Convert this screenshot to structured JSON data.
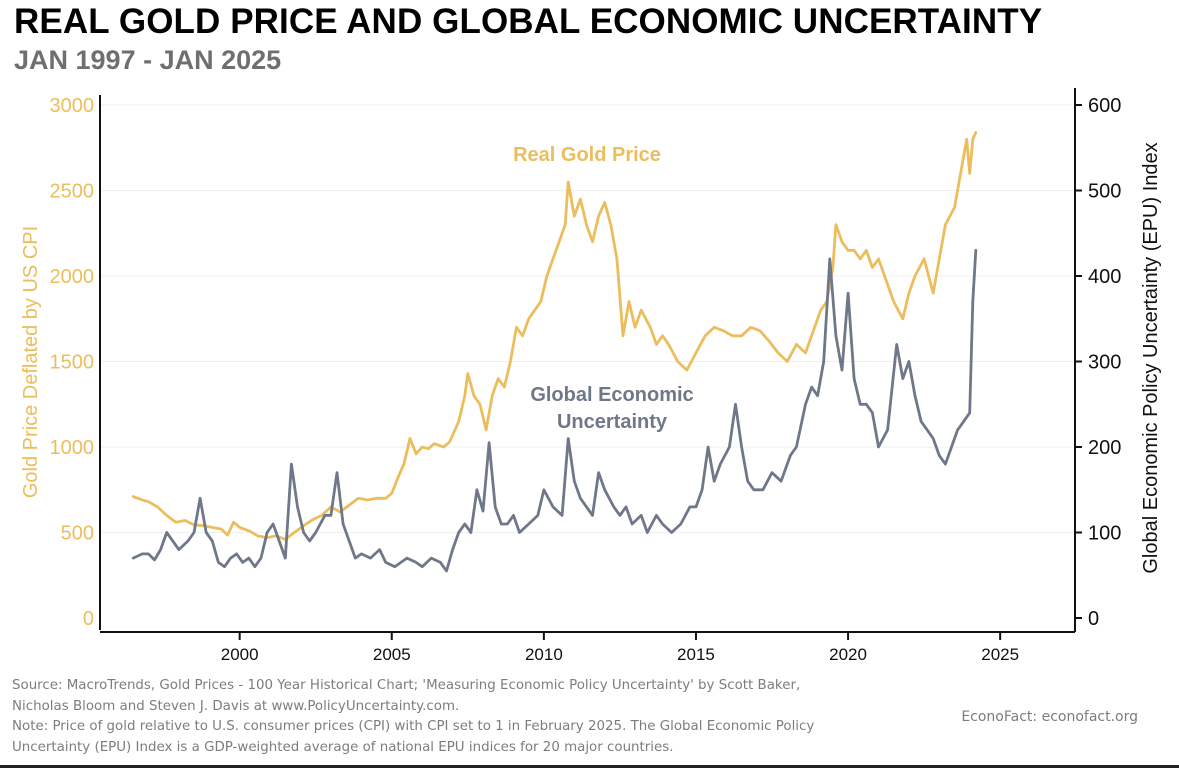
{
  "header": {
    "title": "REAL GOLD PRICE AND GLOBAL ECONOMIC UNCERTAINTY",
    "subtitle": "JAN 1997 - JAN 2025"
  },
  "colors": {
    "gold": "#ecbd5c",
    "epu": "#6e7889",
    "axis": "#111111",
    "grid": "#efefef",
    "note": "#7d7d7d"
  },
  "chart_data": {
    "type": "line",
    "xlim": [
      1996,
      2027
    ],
    "x_ticks": [
      2000,
      2005,
      2010,
      2015,
      2020,
      2025
    ],
    "left_axis": {
      "label": "Gold Price Deflated by US CPI",
      "lim": [
        0,
        3000
      ],
      "ticks": [
        0,
        500,
        1000,
        1500,
        2000,
        2500,
        3000
      ]
    },
    "right_axis": {
      "label": "Global Economic Policy Uncertainty (EPU) Index",
      "lim": [
        0,
        600
      ],
      "ticks": [
        0,
        100,
        200,
        300,
        400,
        500,
        600
      ]
    },
    "grid": "horizontal",
    "series": [
      {
        "name": "Real Gold Price",
        "axis": "left",
        "points": [
          [
            1996.5,
            710
          ],
          [
            1996.8,
            690
          ],
          [
            1997.0,
            680
          ],
          [
            1997.3,
            650
          ],
          [
            1997.6,
            600
          ],
          [
            1997.9,
            560
          ],
          [
            1998.2,
            570
          ],
          [
            1998.5,
            545
          ],
          [
            1998.8,
            540
          ],
          [
            1999.1,
            530
          ],
          [
            1999.4,
            520
          ],
          [
            1999.6,
            485
          ],
          [
            1999.8,
            560
          ],
          [
            2000.0,
            530
          ],
          [
            2000.3,
            510
          ],
          [
            2000.6,
            480
          ],
          [
            2000.9,
            470
          ],
          [
            2001.2,
            480
          ],
          [
            2001.5,
            460
          ],
          [
            2001.8,
            500
          ],
          [
            2002.1,
            540
          ],
          [
            2002.4,
            575
          ],
          [
            2002.7,
            600
          ],
          [
            2003.0,
            650
          ],
          [
            2003.3,
            620
          ],
          [
            2003.6,
            660
          ],
          [
            2003.9,
            700
          ],
          [
            2004.2,
            690
          ],
          [
            2004.5,
            700
          ],
          [
            2004.8,
            700
          ],
          [
            2005.0,
            730
          ],
          [
            2005.2,
            820
          ],
          [
            2005.4,
            900
          ],
          [
            2005.6,
            1050
          ],
          [
            2005.8,
            960
          ],
          [
            2006.0,
            1000
          ],
          [
            2006.2,
            990
          ],
          [
            2006.4,
            1020
          ],
          [
            2006.7,
            1000
          ],
          [
            2006.9,
            1030
          ],
          [
            2007.2,
            1150
          ],
          [
            2007.4,
            1300
          ],
          [
            2007.5,
            1430
          ],
          [
            2007.7,
            1300
          ],
          [
            2007.9,
            1250
          ],
          [
            2008.1,
            1100
          ],
          [
            2008.3,
            1300
          ],
          [
            2008.5,
            1400
          ],
          [
            2008.7,
            1350
          ],
          [
            2008.9,
            1500
          ],
          [
            2009.1,
            1700
          ],
          [
            2009.3,
            1650
          ],
          [
            2009.5,
            1750
          ],
          [
            2009.7,
            1800
          ],
          [
            2009.9,
            1850
          ],
          [
            2010.1,
            2000
          ],
          [
            2010.3,
            2100
          ],
          [
            2010.5,
            2200
          ],
          [
            2010.7,
            2300
          ],
          [
            2010.8,
            2550
          ],
          [
            2011.0,
            2350
          ],
          [
            2011.2,
            2450
          ],
          [
            2011.4,
            2300
          ],
          [
            2011.6,
            2200
          ],
          [
            2011.8,
            2350
          ],
          [
            2012.0,
            2430
          ],
          [
            2012.2,
            2300
          ],
          [
            2012.4,
            2100
          ],
          [
            2012.6,
            1650
          ],
          [
            2012.8,
            1850
          ],
          [
            2013.0,
            1700
          ],
          [
            2013.2,
            1800
          ],
          [
            2013.5,
            1700
          ],
          [
            2013.7,
            1600
          ],
          [
            2013.9,
            1650
          ],
          [
            2014.1,
            1600
          ],
          [
            2014.4,
            1500
          ],
          [
            2014.7,
            1450
          ],
          [
            2015.0,
            1550
          ],
          [
            2015.3,
            1650
          ],
          [
            2015.6,
            1700
          ],
          [
            2015.9,
            1680
          ],
          [
            2016.2,
            1650
          ],
          [
            2016.5,
            1650
          ],
          [
            2016.8,
            1700
          ],
          [
            2017.1,
            1680
          ],
          [
            2017.4,
            1620
          ],
          [
            2017.7,
            1550
          ],
          [
            2018.0,
            1500
          ],
          [
            2018.3,
            1600
          ],
          [
            2018.6,
            1550
          ],
          [
            2018.9,
            1700
          ],
          [
            2019.1,
            1800
          ],
          [
            2019.3,
            1850
          ],
          [
            2019.5,
            2050
          ],
          [
            2019.6,
            2300
          ],
          [
            2019.8,
            2200
          ],
          [
            2020.0,
            2150
          ],
          [
            2020.2,
            2150
          ],
          [
            2020.4,
            2100
          ],
          [
            2020.6,
            2150
          ],
          [
            2020.8,
            2050
          ],
          [
            2021.0,
            2100
          ],
          [
            2021.2,
            2000
          ],
          [
            2021.5,
            1850
          ],
          [
            2021.8,
            1750
          ],
          [
            2022.0,
            1900
          ],
          [
            2022.2,
            2000
          ],
          [
            2022.5,
            2100
          ],
          [
            2022.8,
            1900
          ],
          [
            2023.0,
            2100
          ],
          [
            2023.2,
            2300
          ],
          [
            2023.5,
            2400
          ],
          [
            2023.7,
            2600
          ],
          [
            2023.9,
            2800
          ],
          [
            2024.0,
            2600
          ],
          [
            2024.1,
            2800
          ],
          [
            2024.2,
            2840
          ]
        ]
      },
      {
        "name": "Global Economic Uncertainty",
        "axis": "right",
        "points": [
          [
            1996.5,
            70
          ],
          [
            1996.8,
            75
          ],
          [
            1997.0,
            75
          ],
          [
            1997.2,
            68
          ],
          [
            1997.4,
            80
          ],
          [
            1997.6,
            100
          ],
          [
            1997.8,
            90
          ],
          [
            1998.0,
            80
          ],
          [
            1998.3,
            90
          ],
          [
            1998.5,
            100
          ],
          [
            1998.7,
            140
          ],
          [
            1998.9,
            100
          ],
          [
            1999.1,
            90
          ],
          [
            1999.3,
            65
          ],
          [
            1999.5,
            60
          ],
          [
            1999.7,
            70
          ],
          [
            1999.9,
            75
          ],
          [
            2000.1,
            65
          ],
          [
            2000.3,
            70
          ],
          [
            2000.5,
            60
          ],
          [
            2000.7,
            70
          ],
          [
            2000.9,
            100
          ],
          [
            2001.1,
            110
          ],
          [
            2001.3,
            90
          ],
          [
            2001.5,
            70
          ],
          [
            2001.7,
            180
          ],
          [
            2001.9,
            130
          ],
          [
            2002.1,
            100
          ],
          [
            2002.3,
            90
          ],
          [
            2002.5,
            100
          ],
          [
            2002.8,
            120
          ],
          [
            2003.0,
            120
          ],
          [
            2003.2,
            170
          ],
          [
            2003.4,
            110
          ],
          [
            2003.6,
            90
          ],
          [
            2003.8,
            70
          ],
          [
            2004.0,
            75
          ],
          [
            2004.3,
            70
          ],
          [
            2004.6,
            80
          ],
          [
            2004.8,
            65
          ],
          [
            2005.1,
            60
          ],
          [
            2005.3,
            65
          ],
          [
            2005.5,
            70
          ],
          [
            2005.8,
            65
          ],
          [
            2006.0,
            60
          ],
          [
            2006.3,
            70
          ],
          [
            2006.6,
            65
          ],
          [
            2006.8,
            55
          ],
          [
            2007.0,
            80
          ],
          [
            2007.2,
            100
          ],
          [
            2007.4,
            110
          ],
          [
            2007.6,
            100
          ],
          [
            2007.8,
            150
          ],
          [
            2008.0,
            125
          ],
          [
            2008.2,
            205
          ],
          [
            2008.4,
            130
          ],
          [
            2008.6,
            110
          ],
          [
            2008.8,
            110
          ],
          [
            2009.0,
            120
          ],
          [
            2009.2,
            100
          ],
          [
            2009.5,
            110
          ],
          [
            2009.8,
            120
          ],
          [
            2010.0,
            150
          ],
          [
            2010.3,
            130
          ],
          [
            2010.6,
            120
          ],
          [
            2010.8,
            210
          ],
          [
            2011.0,
            160
          ],
          [
            2011.2,
            140
          ],
          [
            2011.4,
            130
          ],
          [
            2011.6,
            120
          ],
          [
            2011.8,
            170
          ],
          [
            2012.0,
            150
          ],
          [
            2012.3,
            130
          ],
          [
            2012.5,
            120
          ],
          [
            2012.7,
            130
          ],
          [
            2012.9,
            110
          ],
          [
            2013.2,
            120
          ],
          [
            2013.4,
            100
          ],
          [
            2013.7,
            120
          ],
          [
            2013.9,
            110
          ],
          [
            2014.2,
            100
          ],
          [
            2014.5,
            110
          ],
          [
            2014.8,
            130
          ],
          [
            2015.0,
            130
          ],
          [
            2015.2,
            150
          ],
          [
            2015.4,
            200
          ],
          [
            2015.6,
            160
          ],
          [
            2015.8,
            180
          ],
          [
            2016.1,
            200
          ],
          [
            2016.3,
            250
          ],
          [
            2016.5,
            200
          ],
          [
            2016.7,
            160
          ],
          [
            2016.9,
            150
          ],
          [
            2017.2,
            150
          ],
          [
            2017.5,
            170
          ],
          [
            2017.8,
            160
          ],
          [
            2018.1,
            190
          ],
          [
            2018.3,
            200
          ],
          [
            2018.6,
            250
          ],
          [
            2018.8,
            270
          ],
          [
            2019.0,
            260
          ],
          [
            2019.2,
            300
          ],
          [
            2019.4,
            420
          ],
          [
            2019.6,
            330
          ],
          [
            2019.8,
            290
          ],
          [
            2020.0,
            380
          ],
          [
            2020.2,
            280
          ],
          [
            2020.4,
            250
          ],
          [
            2020.6,
            250
          ],
          [
            2020.8,
            240
          ],
          [
            2021.0,
            200
          ],
          [
            2021.3,
            220
          ],
          [
            2021.6,
            320
          ],
          [
            2021.8,
            280
          ],
          [
            2022.0,
            300
          ],
          [
            2022.2,
            260
          ],
          [
            2022.4,
            230
          ],
          [
            2022.6,
            220
          ],
          [
            2022.8,
            210
          ],
          [
            2023.0,
            190
          ],
          [
            2023.2,
            180
          ],
          [
            2023.4,
            200
          ],
          [
            2023.6,
            220
          ],
          [
            2023.8,
            230
          ],
          [
            2024.0,
            240
          ],
          [
            2024.1,
            370
          ],
          [
            2024.2,
            430
          ]
        ]
      }
    ],
    "annotations": [
      {
        "text": "Real Gold Price",
        "series": 0
      },
      {
        "text": "Global Economic\nUncertainty",
        "series": 1
      }
    ]
  },
  "footer": {
    "source_lines": [
      "Source: MacroTrends, Gold Prices - 100 Year Historical Chart; 'Measuring Economic Policy Uncertainty' by Scott Baker,",
      "Nicholas Bloom and Steven J. Davis at www.PolicyUncertainty.com.",
      "Note: Price of gold relative to U.S. consumer prices (CPI) with CPI set to 1 in February 2025. The Global Economic Policy",
      "Uncertainty (EPU) Index is a GDP-weighted average of national EPU indices for 20 major countries."
    ],
    "credit": "EconoFact:   econofact.org"
  }
}
